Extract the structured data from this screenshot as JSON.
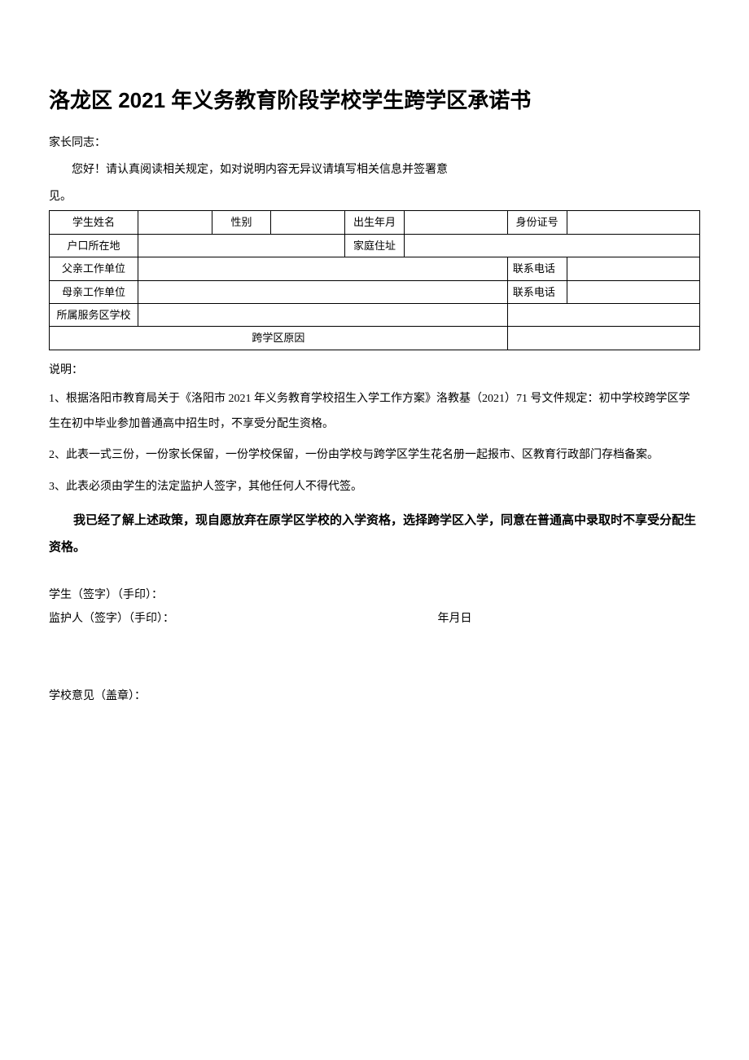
{
  "title": "洛龙区 2021 年义务教育阶段学校学生跨学区承诺书",
  "greeting": "家长同志：",
  "intro": "您好！请认真阅读相关规定，如对说明内容无异议请填写相关信息并签署意",
  "intro_continue": "见。",
  "table": {
    "student_name_label": "学生姓名",
    "gender_label": "性别",
    "birth_label": "出生年月",
    "id_label": "身份证号",
    "hukou_label": "户口所在地",
    "address_label": "家庭住址",
    "father_work_label": "父亲工作单位",
    "father_phone_label": "联系电话",
    "mother_work_label": "母亲工作单位",
    "mother_phone_label": "联系电话",
    "service_school_label": "所属服务区学校",
    "cross_reason_label": "跨学区原因"
  },
  "desc_heading": "说明：",
  "desc1": "1、根据洛阳市教育局关于《洛阳市 2021 年义务教育学校招生入学工作方案》洛教基（2021）71 号文件规定：初中学校跨学区学生在初中毕业参加普通高中招生时，不享受分配生资格。",
  "desc2": "2、此表一式三份，一份家长保留，一份学校保留，一份由学校与跨学区学生花名册一起报市、区教育行政部门存档备案。",
  "desc3": "3、此表必须由学生的法定监护人签字，其他任何人不得代签。",
  "declaration": "我已经了解上述政策，现自愿放弃在原学区学校的入学资格，选择跨学区入学，同意在普通高中录取时不享受分配生资格。",
  "sig_student": "学生（签字）（手印）：",
  "sig_guardian": "监护人（签字）（手印）：",
  "date_label": "年月日",
  "school_opinion": "学校意见（盖章）："
}
